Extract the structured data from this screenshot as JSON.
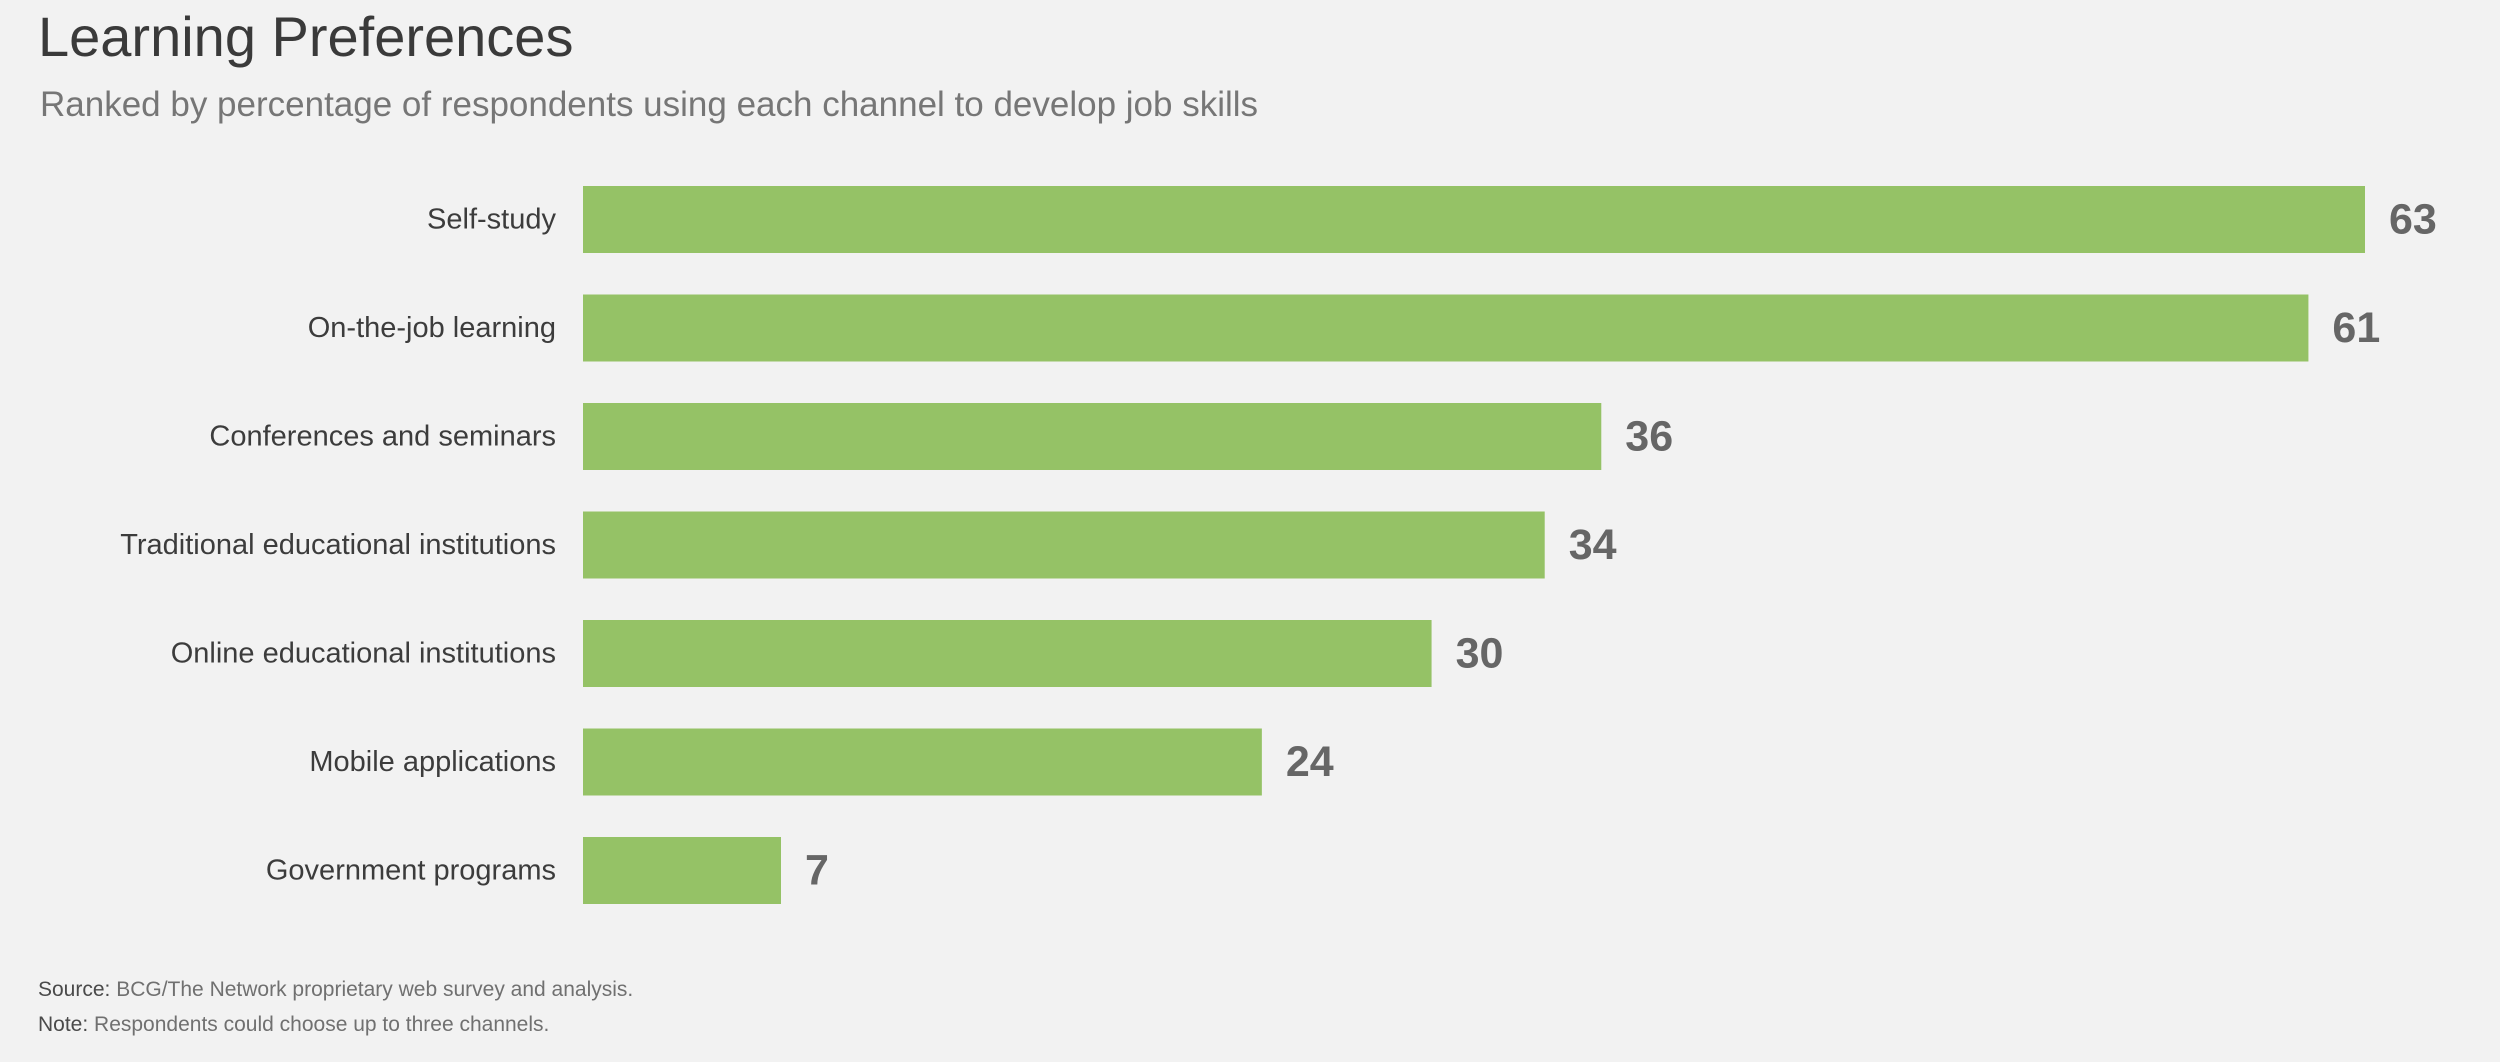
{
  "chart_data": {
    "type": "bar",
    "orientation": "horizontal",
    "title": "Learning Preferences",
    "subtitle": "Ranked by percentage of respondents using each channel to develop job skills",
    "categories": [
      "Self-study",
      "On-the-job learning",
      "Conferences and seminars",
      "Traditional educational institutions",
      "Online educational institutions",
      "Mobile applications",
      "Government programs"
    ],
    "values": [
      63,
      61,
      36,
      34,
      30,
      24,
      7
    ],
    "data_labels": [
      "63",
      "61",
      "36",
      "34",
      "30",
      "24",
      "7"
    ],
    "xlim": [
      0,
      63
    ],
    "grid": false,
    "legend": "none",
    "bar_color": "#95c266",
    "value_label_color": "#666666"
  },
  "footnotes": {
    "source_label": "Source:",
    "source_text": " BCG/The Network proprietary web survey and analysis.",
    "note_label": "Note:",
    "note_text": " Respondents could choose up to three channels."
  }
}
